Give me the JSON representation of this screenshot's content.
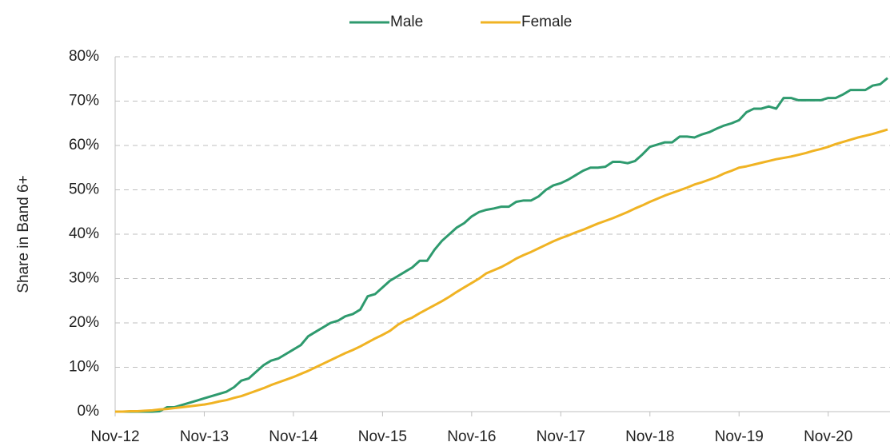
{
  "chart_data": {
    "type": "line",
    "y_label": "Share in Band 6+",
    "categories": [
      "Nov-12",
      null,
      null,
      null,
      null,
      null,
      null,
      null,
      null,
      null,
      null,
      null,
      "Nov-13",
      null,
      null,
      null,
      null,
      null,
      null,
      null,
      null,
      null,
      null,
      null,
      "Nov-14",
      null,
      null,
      null,
      null,
      null,
      null,
      null,
      null,
      null,
      null,
      null,
      "Nov-15",
      null,
      null,
      null,
      null,
      null,
      null,
      null,
      null,
      null,
      null,
      null,
      "Nov-16",
      null,
      null,
      null,
      null,
      null,
      null,
      null,
      null,
      null,
      null,
      null,
      "Nov-17",
      null,
      null,
      null,
      null,
      null,
      null,
      null,
      null,
      null,
      null,
      null,
      "Nov-18",
      null,
      null,
      null,
      null,
      null,
      null,
      null,
      null,
      null,
      null,
      null,
      "Nov-19",
      null,
      null,
      null,
      null,
      null,
      null,
      null,
      null,
      null,
      null,
      null,
      "Nov-20",
      null,
      null,
      null,
      null,
      null,
      null,
      null,
      null
    ],
    "series": [
      {
        "name": "Male",
        "color": "#2e9a6e",
        "values": [
          0,
          0,
          0,
          0,
          0,
          0,
          0.1,
          1,
          1,
          1.5,
          2,
          2.5,
          3,
          3.5,
          4,
          4.5,
          5.5,
          7,
          7.5,
          9,
          10.5,
          11.5,
          12,
          13,
          14,
          15,
          17,
          18,
          19,
          20,
          20.5,
          21.5,
          22,
          23,
          26,
          26.5,
          28,
          29.5,
          30.5,
          31.5,
          32.5,
          34,
          34,
          36.5,
          38.5,
          40,
          41.5,
          42.5,
          44,
          45,
          45.5,
          45.8,
          46.2,
          46.2,
          47.3,
          47.6,
          47.6,
          48.5,
          50,
          51,
          51.5,
          52.3,
          53.3,
          54.3,
          55,
          55,
          55.2,
          56.3,
          56.3,
          56,
          56.5,
          58,
          59.7,
          60.2,
          60.7,
          60.7,
          62,
          62,
          61.8,
          62.5,
          63,
          63.8,
          64.5,
          65,
          65.7,
          67.5,
          68.3,
          68.3,
          68.8,
          68.3,
          70.7,
          70.7,
          70.2,
          70.2,
          70.2,
          70.2,
          70.7,
          70.7,
          71.5,
          72.5,
          72.5,
          72.5,
          73.5,
          73.8,
          75.2
        ]
      },
      {
        "name": "Female",
        "color": "#f0b323",
        "values": [
          0,
          0,
          0.1,
          0.1,
          0.2,
          0.3,
          0.5,
          0.6,
          0.8,
          1.0,
          1.2,
          1.4,
          1.6,
          1.9,
          2.3,
          2.6,
          3.1,
          3.5,
          4.1,
          4.7,
          5.3,
          6.0,
          6.6,
          7.2,
          7.8,
          8.5,
          9.2,
          10,
          10.8,
          11.6,
          12.4,
          13.2,
          13.9,
          14.7,
          15.6,
          16.5,
          17.3,
          18.2,
          19.5,
          20.5,
          21.2,
          22.2,
          23.1,
          24,
          24.9,
          25.9,
          27,
          28,
          29,
          30,
          31.2,
          31.9,
          32.6,
          33.5,
          34.5,
          35.3,
          36,
          36.8,
          37.6,
          38.4,
          39.1,
          39.7,
          40.4,
          41,
          41.7,
          42.4,
          43,
          43.6,
          44.3,
          45,
          45.8,
          46.5,
          47.3,
          48,
          48.7,
          49.3,
          49.9,
          50.5,
          51.2,
          51.7,
          52.3,
          52.9,
          53.7,
          54.3,
          55,
          55.3,
          55.7,
          56.1,
          56.5,
          56.9,
          57.2,
          57.5,
          57.9,
          58.3,
          58.8,
          59.2,
          59.7,
          60.3,
          60.8,
          61.3,
          61.8,
          62.2,
          62.6,
          63.1,
          63.6
        ]
      }
    ],
    "ylim": [
      0,
      80
    ],
    "yticks": [
      {
        "value": 0,
        "label": "0%"
      },
      {
        "value": 10,
        "label": "10%"
      },
      {
        "value": 20,
        "label": "20%"
      },
      {
        "value": 30,
        "label": "30%"
      },
      {
        "value": 40,
        "label": "40%"
      },
      {
        "value": 50,
        "label": "50%"
      },
      {
        "value": 60,
        "label": "60%"
      },
      {
        "value": 70,
        "label": "70%"
      },
      {
        "value": 80,
        "label": "80%"
      }
    ],
    "grid": true,
    "legend": "top"
  }
}
